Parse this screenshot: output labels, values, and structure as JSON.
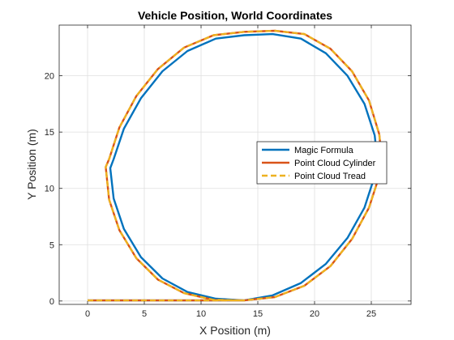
{
  "chart_data": {
    "type": "line",
    "title": "Vehicle Position, World Coordinates",
    "xlabel": "X Position (m)",
    "ylabel": "Y Position (m)",
    "xlim": [
      -2.5,
      28.5
    ],
    "ylim": [
      -0.3,
      24.5
    ],
    "xticks": [
      0,
      5,
      10,
      15,
      20,
      25
    ],
    "yticks": [
      0,
      5,
      10,
      15,
      20
    ],
    "grid": true,
    "legend_position": "right",
    "series": [
      {
        "name": "Magic Formula",
        "color": "#0072BD",
        "dash": "solid",
        "x": [
          0,
          10,
          12,
          13.8,
          16.3,
          18.8,
          21.0,
          22.9,
          24.4,
          25.3,
          25.6,
          25.3,
          24.4,
          22.9,
          21.0,
          18.8,
          16.3,
          13.8,
          11.3,
          8.8,
          6.6,
          4.7,
          3.2,
          2.3,
          2.0,
          2.3,
          3.2,
          4.7,
          6.6,
          8.8,
          11.3,
          13.8
        ],
        "y": [
          0.05,
          0.05,
          0.05,
          0.05,
          0.5,
          1.6,
          3.3,
          5.6,
          8.3,
          11.1,
          11.8,
          14.7,
          17.5,
          20.0,
          22.0,
          23.3,
          23.7,
          23.6,
          23.3,
          22.2,
          20.4,
          18.0,
          15.3,
          12.6,
          11.8,
          9.1,
          6.4,
          3.9,
          2.0,
          0.8,
          0.2,
          0.05
        ]
      },
      {
        "name": "Point Cloud Cylinder",
        "color": "#D95319",
        "dash": "solid",
        "x": [
          0,
          10,
          12,
          13.8,
          16.5,
          19.1,
          21.4,
          23.3,
          24.8,
          25.7,
          26.0,
          25.7,
          24.8,
          23.3,
          21.4,
          19.1,
          16.5,
          13.8,
          11.1,
          8.5,
          6.2,
          4.3,
          2.8,
          1.9,
          1.6,
          1.9,
          2.8,
          4.3,
          6.2,
          8.5,
          11.1,
          13.8
        ],
        "y": [
          0.05,
          0.05,
          0.05,
          0.05,
          0.35,
          1.35,
          3.1,
          5.5,
          8.3,
          11.1,
          11.9,
          14.8,
          17.8,
          20.4,
          22.4,
          23.7,
          24.0,
          23.9,
          23.6,
          22.5,
          20.6,
          18.2,
          15.4,
          12.6,
          11.9,
          9.0,
          6.3,
          3.8,
          1.9,
          0.7,
          0.1,
          0.05
        ]
      },
      {
        "name": "Point Cloud Tread",
        "color": "#EDB120",
        "dash": "dashed",
        "x": [
          0,
          10,
          12,
          13.8,
          16.5,
          19.1,
          21.4,
          23.3,
          24.8,
          25.7,
          26.0,
          25.7,
          24.8,
          23.3,
          21.4,
          19.1,
          16.5,
          13.8,
          11.1,
          8.5,
          6.2,
          4.3,
          2.8,
          1.9,
          1.6,
          1.9,
          2.8,
          4.3,
          6.2,
          8.5,
          11.1,
          13.8
        ],
        "y": [
          0.05,
          0.05,
          0.05,
          0.05,
          0.35,
          1.35,
          3.1,
          5.5,
          8.3,
          11.1,
          11.9,
          14.8,
          17.8,
          20.4,
          22.4,
          23.7,
          24.0,
          23.9,
          23.6,
          22.5,
          20.6,
          18.2,
          15.4,
          12.6,
          11.9,
          9.0,
          6.3,
          3.8,
          1.9,
          0.7,
          0.1,
          0.05
        ]
      }
    ]
  }
}
